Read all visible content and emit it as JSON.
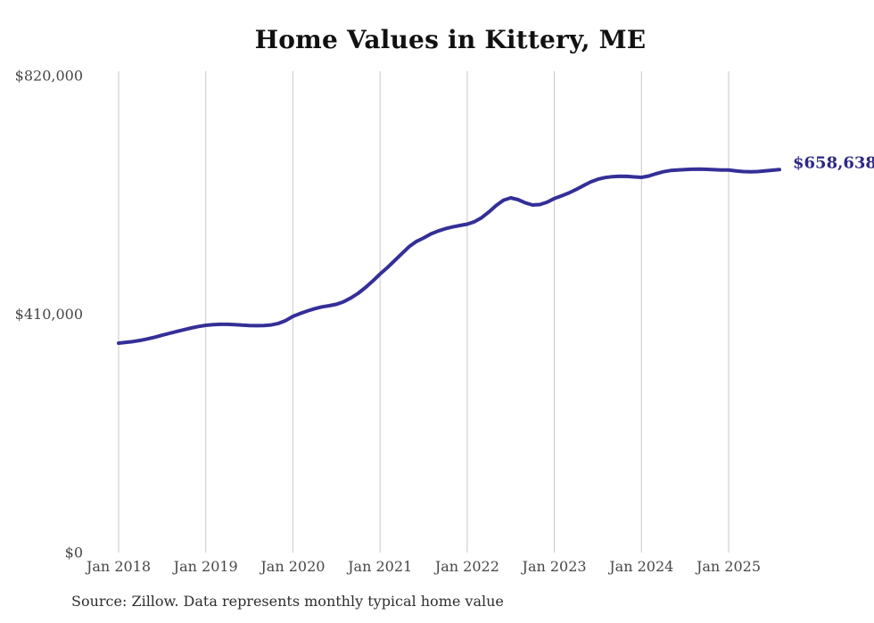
{
  "chart": {
    "title": "Home Values in Kittery, ME",
    "source_note": "Source: Zillow. Data represents monthly typical home value",
    "colors": {
      "line": "#342f97",
      "end_label": "#2c2787",
      "gridline": "#c8c8c8",
      "tick_label": "#474747",
      "title": "#111111",
      "source": "#2e2e2e",
      "background": "#ffffff"
    }
  },
  "chart_data": {
    "type": "line",
    "title": "Home Values in Kittery, ME",
    "ylabel": "",
    "xlabel": "",
    "ylim": [
      0,
      820000
    ],
    "grid": "vertical-only",
    "legend": "none",
    "y_tick_labels": [
      "$820,000",
      "$410,000",
      "$0"
    ],
    "y_tick_values": [
      820000,
      410000,
      0
    ],
    "x_tick_labels": [
      "Jan 2018",
      "Jan 2019",
      "Jan 2020",
      "Jan 2021",
      "Jan 2022",
      "Jan 2023",
      "Jan 2024",
      "Jan 2025"
    ],
    "final_value": 658638,
    "final_value_label": "$658,638",
    "months": [
      "2018-01",
      "2018-02",
      "2018-03",
      "2018-04",
      "2018-05",
      "2018-06",
      "2018-07",
      "2018-08",
      "2018-09",
      "2018-10",
      "2018-11",
      "2018-12",
      "2019-01",
      "2019-02",
      "2019-03",
      "2019-04",
      "2019-05",
      "2019-06",
      "2019-07",
      "2019-08",
      "2019-09",
      "2019-10",
      "2019-11",
      "2019-12",
      "2020-01",
      "2020-02",
      "2020-03",
      "2020-04",
      "2020-05",
      "2020-06",
      "2020-07",
      "2020-08",
      "2020-09",
      "2020-10",
      "2020-11",
      "2020-12",
      "2021-01",
      "2021-02",
      "2021-03",
      "2021-04",
      "2021-05",
      "2021-06",
      "2021-07",
      "2021-08",
      "2021-09",
      "2021-10",
      "2021-11",
      "2021-12",
      "2022-01",
      "2022-02",
      "2022-03",
      "2022-04",
      "2022-05",
      "2022-06",
      "2022-07",
      "2022-08",
      "2022-09",
      "2022-10",
      "2022-11",
      "2022-12",
      "2023-01",
      "2023-02",
      "2023-03",
      "2023-04",
      "2023-05",
      "2023-06",
      "2023-07",
      "2023-08",
      "2023-09",
      "2023-10",
      "2023-11",
      "2023-12",
      "2024-01",
      "2024-02",
      "2024-03",
      "2024-04",
      "2024-05",
      "2024-06",
      "2024-07",
      "2024-08",
      "2024-09",
      "2024-10",
      "2024-11",
      "2024-12",
      "2025-01",
      "2025-02",
      "2025-03",
      "2025-04",
      "2025-05",
      "2025-06",
      "2025-07",
      "2025-08"
    ],
    "values": [
      360200,
      361500,
      363000,
      365000,
      367500,
      370500,
      373800,
      377000,
      380200,
      383300,
      386200,
      388800,
      390800,
      392000,
      392600,
      392600,
      392000,
      391200,
      390500,
      390200,
      390500,
      391500,
      394000,
      399000,
      406200,
      411000,
      415500,
      419500,
      422500,
      424500,
      427000,
      431500,
      438000,
      446000,
      456000,
      467000,
      479000,
      490000,
      502000,
      514000,
      526000,
      535000,
      541000,
      548000,
      553000,
      557000,
      560000,
      562500,
      564800,
      569000,
      576000,
      586000,
      597000,
      606000,
      610000,
      607000,
      601500,
      597700,
      598500,
      602500,
      609000,
      613500,
      618500,
      624500,
      631000,
      637500,
      642000,
      645000,
      646500,
      647200,
      647000,
      646000,
      645200,
      647500,
      651500,
      655000,
      657000,
      658000,
      658800,
      659200,
      659300,
      659000,
      658500,
      658000,
      657800,
      656500,
      655200,
      654800,
      655300,
      656400,
      657600,
      658638
    ]
  }
}
